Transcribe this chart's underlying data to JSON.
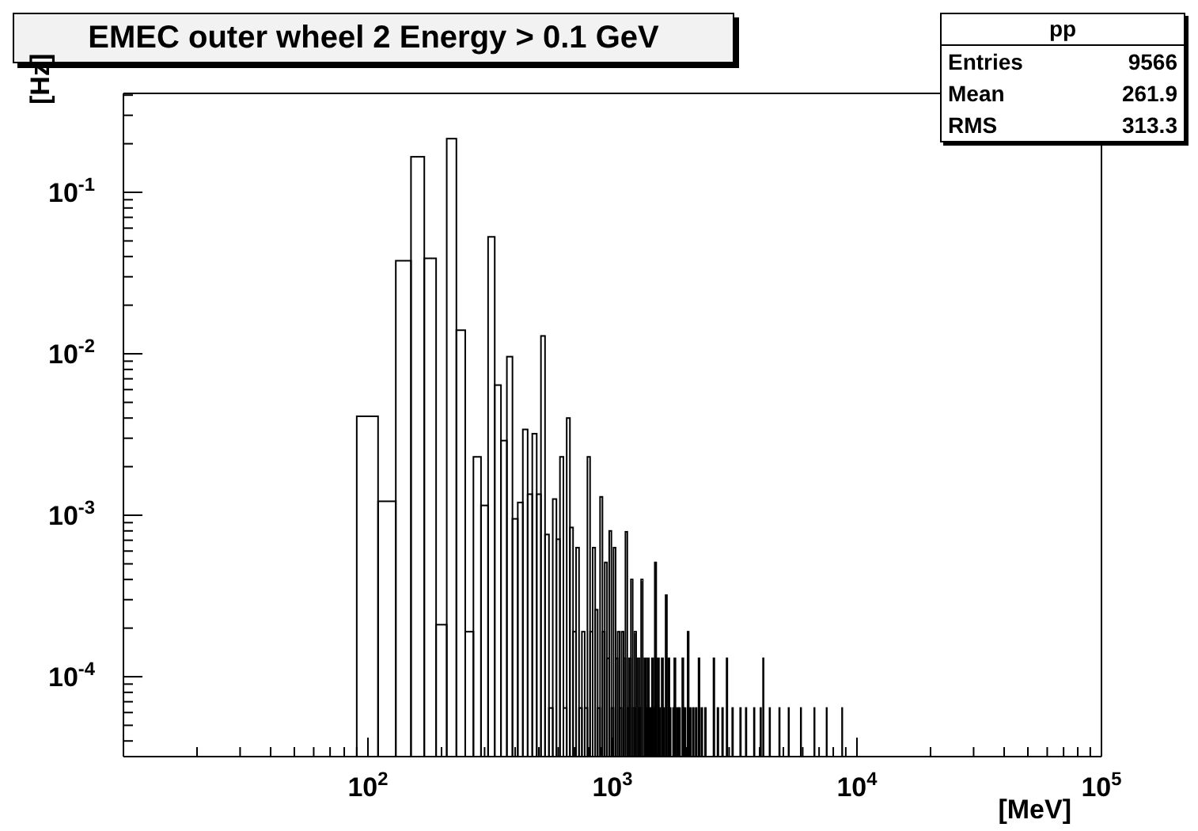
{
  "chart_data": {
    "type": "histogram",
    "title": "EMEC outer wheel 2 Energy >  0.1 GeV",
    "xlabel": "[MeV]",
    "ylabel": "[Hz]",
    "annotations": [
      "pp",
      "Entries",
      "9566",
      "Mean",
      "261.9",
      "RMS",
      "313.3"
    ],
    "color": "#000000",
    "log": "xy",
    "xlim": [
      10,
      100000
    ],
    "ylim": [
      3.2e-05,
      0.41
    ],
    "xticks": [
      {
        "value": 20,
        "label": null
      },
      {
        "value": 30,
        "label": null
      },
      {
        "value": 40,
        "label": null
      },
      {
        "value": 50,
        "label": null
      },
      {
        "value": 60,
        "label": null
      },
      {
        "value": 70,
        "label": null
      },
      {
        "value": 80,
        "label": null
      },
      {
        "value": 90,
        "label": null
      },
      {
        "value": 100,
        "label": "10$^{2}$"
      },
      {
        "value": 200,
        "label": null
      },
      {
        "value": 300,
        "label": null
      },
      {
        "value": 400,
        "label": null
      },
      {
        "value": 500,
        "label": null
      },
      {
        "value": 600,
        "label": null
      },
      {
        "value": 700,
        "label": null
      },
      {
        "value": 800,
        "label": null
      },
      {
        "value": 900,
        "label": null
      },
      {
        "value": 1000,
        "label": "10$^{3}$"
      },
      {
        "value": 2000,
        "label": null
      },
      {
        "value": 3000,
        "label": null
      },
      {
        "value": 4000,
        "label": null
      },
      {
        "value": 5000,
        "label": null
      },
      {
        "value": 6000,
        "label": null
      },
      {
        "value": 7000,
        "label": null
      },
      {
        "value": 8000,
        "label": null
      },
      {
        "value": 9000,
        "label": null
      },
      {
        "value": 10000,
        "label": "10$^{4}$"
      },
      {
        "value": 20000,
        "label": null
      },
      {
        "value": 30000,
        "label": null
      },
      {
        "value": 40000,
        "label": null
      },
      {
        "value": 50000,
        "label": null
      },
      {
        "value": 60000,
        "label": null
      },
      {
        "value": 70000,
        "label": null
      },
      {
        "value": 80000,
        "label": null
      },
      {
        "value": 90000,
        "label": null
      },
      {
        "value": 100000,
        "label": "10$^{5}$"
      }
    ],
    "yticks": [
      {
        "value": 4e-05,
        "label": null
      },
      {
        "value": 5e-05,
        "label": null
      },
      {
        "value": 6e-05,
        "label": null
      },
      {
        "value": 7e-05,
        "label": null
      },
      {
        "value": 8e-05,
        "label": null
      },
      {
        "value": 9e-05,
        "label": null
      },
      {
        "value": 0.0001,
        "label": "10$^{-4}$"
      },
      {
        "value": 0.0002,
        "label": null
      },
      {
        "value": 0.0003,
        "label": null
      },
      {
        "value": 0.0004,
        "label": null
      },
      {
        "value": 0.0005,
        "label": null
      },
      {
        "value": 0.0006,
        "label": null
      },
      {
        "value": 0.0007,
        "label": null
      },
      {
        "value": 0.0008,
        "label": null
      },
      {
        "value": 0.0009,
        "label": null
      },
      {
        "value": 0.001,
        "label": "10$^{-3}$"
      },
      {
        "value": 0.002,
        "label": null
      },
      {
        "value": 0.003,
        "label": null
      },
      {
        "value": 0.004,
        "label": null
      },
      {
        "value": 0.005,
        "label": null
      },
      {
        "value": 0.006,
        "label": null
      },
      {
        "value": 0.007,
        "label": null
      },
      {
        "value": 0.008,
        "label": null
      },
      {
        "value": 0.009,
        "label": null
      },
      {
        "value": 0.01,
        "label": "10$^{-2}$"
      },
      {
        "value": 0.02,
        "label": null
      },
      {
        "value": 0.03,
        "label": null
      },
      {
        "value": 0.04,
        "label": null
      },
      {
        "value": 0.05,
        "label": null
      },
      {
        "value": 0.06,
        "label": null
      },
      {
        "value": 0.07,
        "label": null
      },
      {
        "value": 0.08,
        "label": null
      },
      {
        "value": 0.09,
        "label": null
      },
      {
        "value": 0.1,
        "label": "10$^{-1}$"
      },
      {
        "value": 0.2,
        "label": null
      },
      {
        "value": 0.3,
        "label": null
      },
      {
        "value": 0.4,
        "label": null
      }
    ],
    "bins": [
      90,
      110,
      130,
      150,
      170,
      190,
      210,
      230,
      250,
      270,
      290,
      310,
      330,
      350,
      370,
      390,
      410,
      430,
      450,
      470,
      490,
      510,
      530,
      550,
      570,
      590,
      610,
      630,
      650,
      670,
      690,
      710,
      730,
      750,
      770,
      790,
      810,
      830,
      850,
      870,
      890,
      910,
      930,
      950,
      970,
      990,
      1010,
      1030,
      1050,
      1070,
      1090,
      1110,
      1130,
      1150,
      1170,
      1190,
      1210,
      1230,
      1250,
      1270,
      1290,
      1310,
      1330,
      1350,
      1370,
      1390,
      1410,
      1430,
      1450,
      1470,
      1490,
      1510,
      1530,
      1550,
      1570,
      1590,
      1610,
      1630,
      1650,
      1670,
      1690,
      1710,
      1730,
      1770,
      1790,
      1810,
      1830,
      1850,
      1870,
      1890,
      1930,
      1950,
      1970,
      1990,
      2030,
      2050,
      2070,
      2090,
      2130,
      2150,
      2190,
      2210,
      2250,
      2270,
      2310,
      2330,
      2390,
      2410,
      2590,
      2610,
      2690,
      2710,
      2810,
      2830,
      2930,
      2950,
      3090,
      3110,
      3330,
      3350,
      3510,
      3530,
      3790,
      3810,
      4030,
      4050,
      4130,
      4150,
      4390,
      4410,
      4810,
      4830,
      5250,
      5270,
      5890,
      5910,
      6690,
      6710,
      7510,
      7530,
      8690,
      8710
    ],
    "values": [
      0.0041,
      0.00122,
      0.0377,
      0.166,
      0.039,
      0.00021,
      0.215,
      0.014,
      0.00019,
      0.0023,
      0.00115,
      0.053,
      0.0064,
      0.0029,
      0.0096,
      0.00095,
      0.0012,
      0.0034,
      0.00135,
      0.0032,
      0.00135,
      0.0129,
      0.00076,
      6.4e-05,
      0.00126,
      0.00071,
      0.0023,
      6.4e-05,
      0.004,
      0.00084,
      0.00019,
      0.00063,
      6.4e-05,
      0.00019,
      6.4e-05,
      0.0023,
      0.00019,
      0.00063,
      0.00026,
      6.4e-05,
      0.0013,
      0.00019,
      0.00051,
      0.00013,
      0.0008,
      6.4e-05,
      0.00063,
      0.00013,
      0.00019,
      6.4e-05,
      0.00019,
      0.00013,
      0.00079,
      6.4e-05,
      0.00013,
      0.0004,
      6.4e-05,
      0.00019,
      null,
      0.00013,
      6.4e-05,
      0.0004,
      null,
      0.00013,
      6.4e-05,
      0.00013,
      null,
      6.4e-05,
      0.00013,
      6.4e-05,
      0.00051,
      null,
      0.00013,
      6.4e-05,
      null,
      0.00013,
      6.4e-05,
      null,
      0.00032,
      null,
      0.00013,
      6.4e-05,
      null,
      6.4e-05,
      0.00013,
      null,
      6.4e-05,
      null,
      6.4e-05,
      null,
      0.00013,
      null,
      6.4e-05,
      null,
      0.00019,
      null,
      6.4e-05,
      null,
      6.4e-05,
      null,
      6.4e-05,
      null,
      0.00013,
      null,
      6.4e-05,
      null,
      6.4e-05,
      null,
      0.00013,
      null,
      6.4e-05,
      null,
      6.4e-05,
      null,
      0.00013,
      null,
      6.4e-05,
      null,
      6.4e-05,
      null,
      6.4e-05,
      null,
      6.4e-05,
      null,
      6.4e-05,
      null,
      0.00013,
      null,
      6.4e-05,
      null,
      6.4e-05,
      null,
      6.4e-05,
      null,
      6.4e-05,
      null,
      6.4e-05,
      null,
      6.4e-05,
      null,
      6.4e-05
    ]
  }
}
